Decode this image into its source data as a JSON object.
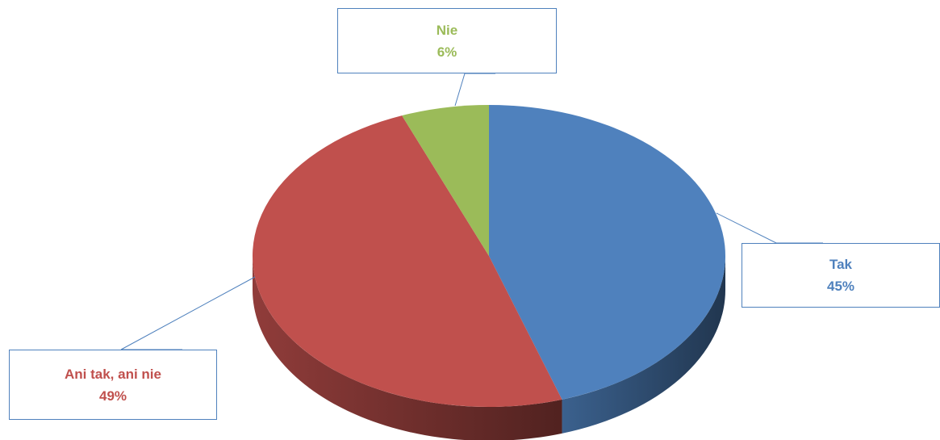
{
  "chart_data": {
    "type": "pie",
    "three_d": true,
    "title": "",
    "slices": [
      {
        "label": "Tak",
        "value": 45,
        "value_label": "45%",
        "color": "#4f81bd"
      },
      {
        "label": "Ani tak, ani nie",
        "value": 49,
        "value_label": "49%",
        "color": "#c0504d"
      },
      {
        "label": "Nie",
        "value": 6,
        "value_label": "6%",
        "color": "#9bbb59"
      }
    ],
    "legend": "none",
    "data_labels": "callouts"
  }
}
